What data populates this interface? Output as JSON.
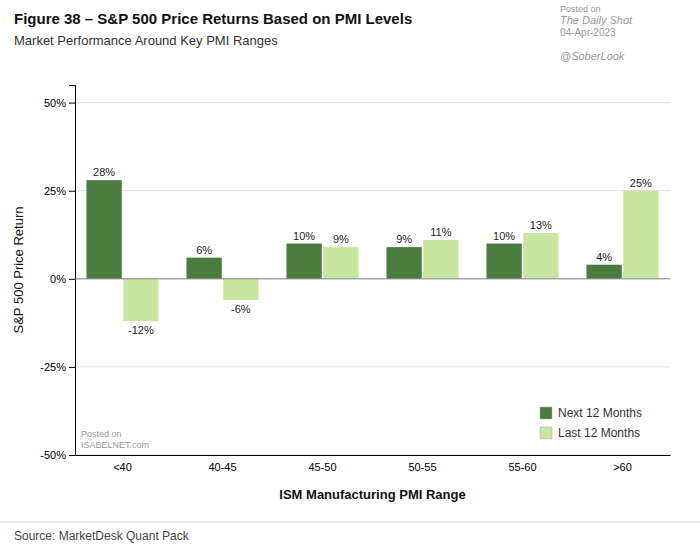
{
  "chart_data": {
    "type": "bar",
    "title": "Figure 38 – S&P 500 Price Returns Based on PMI Levels",
    "subtitle": "Market Performance Around Key PMI Ranges",
    "xlabel": "ISM Manufacturing PMI Range",
    "ylabel": "S&P 500 Price Return",
    "annotations": [
      "Posted on",
      "The Daily Shot",
      "04-Apr-2023",
      "@SoberLook",
      "Source: MarketDesk Quant Pack",
      "Posted on",
      "ISABELNET.com"
    ],
    "categories": [
      "<40",
      "40-45",
      "45-50",
      "50-55",
      "55-60",
      ">60"
    ],
    "series": [
      {
        "name": "Next 12 Months",
        "color": "#4a7c3f",
        "values": [
          28,
          6,
          10,
          9,
          10,
          4
        ],
        "value_labels": [
          "28%",
          "6%",
          "10%",
          "9%",
          "10%",
          "4%"
        ]
      },
      {
        "name": "Last 12 Months",
        "color": "#c8e6a0",
        "values": [
          -12,
          -6,
          9,
          11,
          13,
          25
        ],
        "value_labels": [
          "-12%",
          "-6%",
          "9%",
          "11%",
          "13%",
          "25%"
        ]
      }
    ],
    "ylim": [
      -50,
      55
    ],
    "yticks": [
      {
        "value": -50,
        "label": "-50%"
      },
      {
        "value": -25,
        "label": "-25%"
      },
      {
        "value": 0,
        "label": "0%"
      },
      {
        "value": 25,
        "label": "25%"
      },
      {
        "value": 50,
        "label": "50%"
      }
    ],
    "grid": true,
    "legend": "lower right",
    "data_labels": true
  }
}
